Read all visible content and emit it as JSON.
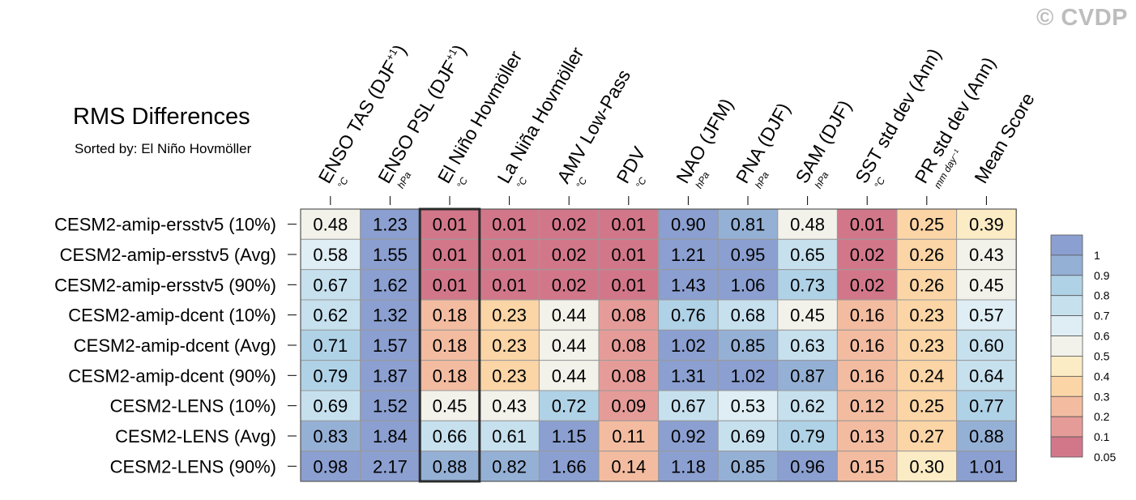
{
  "copyright": "© CVDP",
  "title": "RMS Differences",
  "subtitle": "Sorted by: El Niño Hovmöller",
  "chart_data": {
    "type": "heatmap",
    "columns": [
      {
        "name": "ENSO TAS (DJF",
        "sup": "+1",
        "close": ")",
        "unit": "°C"
      },
      {
        "name": "ENSO PSL (DJF",
        "sup": "+1",
        "close": ")",
        "unit": "hPa"
      },
      {
        "name": "El Niño Hovmöller",
        "sup": "",
        "close": "",
        "unit": "°C"
      },
      {
        "name": "La Niña Hovmöller",
        "sup": "",
        "close": "",
        "unit": "°C"
      },
      {
        "name": "AMV Low-Pass",
        "sup": "",
        "close": "",
        "unit": "°C"
      },
      {
        "name": "PDV",
        "sup": "",
        "close": "",
        "unit": "°C"
      },
      {
        "name": "NAO (JFM)",
        "sup": "",
        "close": "",
        "unit": "hPa"
      },
      {
        "name": "PNA (DJF)",
        "sup": "",
        "close": "",
        "unit": "hPa"
      },
      {
        "name": "SAM (DJF)",
        "sup": "",
        "close": "",
        "unit": "hPa"
      },
      {
        "name": "SST std dev (Ann)",
        "sup": "",
        "close": "",
        "unit": "°C"
      },
      {
        "name": "PR std dev (Ann)",
        "sup": "",
        "close": "",
        "unit": "mm day⁻¹"
      },
      {
        "name": "Mean Score",
        "sup": "",
        "close": "",
        "unit": ""
      }
    ],
    "rows": [
      "CESM2-amip-ersstv5 (10%)",
      "CESM2-amip-ersstv5 (Avg)",
      "CESM2-amip-ersstv5 (90%)",
      "CESM2-amip-dcent (10%)",
      "CESM2-amip-dcent (Avg)",
      "CESM2-amip-dcent (90%)",
      "CESM2-LENS (10%)",
      "CESM2-LENS (Avg)",
      "CESM2-LENS (90%)"
    ],
    "values": [
      [
        0.48,
        1.23,
        0.01,
        0.01,
        0.02,
        0.01,
        0.9,
        0.81,
        0.48,
        0.01,
        0.25,
        0.39
      ],
      [
        0.58,
        1.55,
        0.01,
        0.01,
        0.02,
        0.01,
        1.21,
        0.95,
        0.65,
        0.02,
        0.26,
        0.43
      ],
      [
        0.67,
        1.62,
        0.01,
        0.01,
        0.02,
        0.01,
        1.43,
        1.06,
        0.73,
        0.02,
        0.26,
        0.45
      ],
      [
        0.62,
        1.32,
        0.18,
        0.23,
        0.44,
        0.08,
        0.76,
        0.68,
        0.45,
        0.16,
        0.23,
        0.57
      ],
      [
        0.71,
        1.57,
        0.18,
        0.23,
        0.44,
        0.08,
        1.02,
        0.85,
        0.63,
        0.16,
        0.23,
        0.6
      ],
      [
        0.79,
        1.87,
        0.18,
        0.23,
        0.44,
        0.08,
        1.31,
        1.02,
        0.87,
        0.16,
        0.24,
        0.64
      ],
      [
        0.69,
        1.52,
        0.45,
        0.43,
        0.72,
        0.09,
        0.67,
        0.53,
        0.62,
        0.12,
        0.25,
        0.77
      ],
      [
        0.83,
        1.84,
        0.66,
        0.61,
        1.15,
        0.11,
        0.92,
        0.69,
        0.79,
        0.13,
        0.27,
        0.88
      ],
      [
        0.98,
        2.17,
        0.88,
        0.82,
        1.66,
        0.14,
        1.18,
        0.85,
        0.96,
        0.15,
        0.3,
        1.01
      ]
    ],
    "highlighted_column": "El Niño Hovmöller",
    "colorbar": {
      "labels": [
        "1",
        "0.9",
        "0.8",
        "0.7",
        "0.6",
        "0.5",
        "0.4",
        "0.3",
        "0.2",
        "0.1",
        "0.05"
      ],
      "thresholds": [
        1,
        0.9,
        0.8,
        0.7,
        0.6,
        0.5,
        0.4,
        0.3,
        0.2,
        0.1,
        0.05
      ],
      "colors": [
        "#d2778a",
        "#e59c98",
        "#f3bca0",
        "#fbd5a6",
        "#fcecc5",
        "#f2f2eb",
        "#dfeef4",
        "#c6e0ee",
        "#b0d2e7",
        "#95b0d5",
        "#8b9fd0"
      ]
    }
  }
}
